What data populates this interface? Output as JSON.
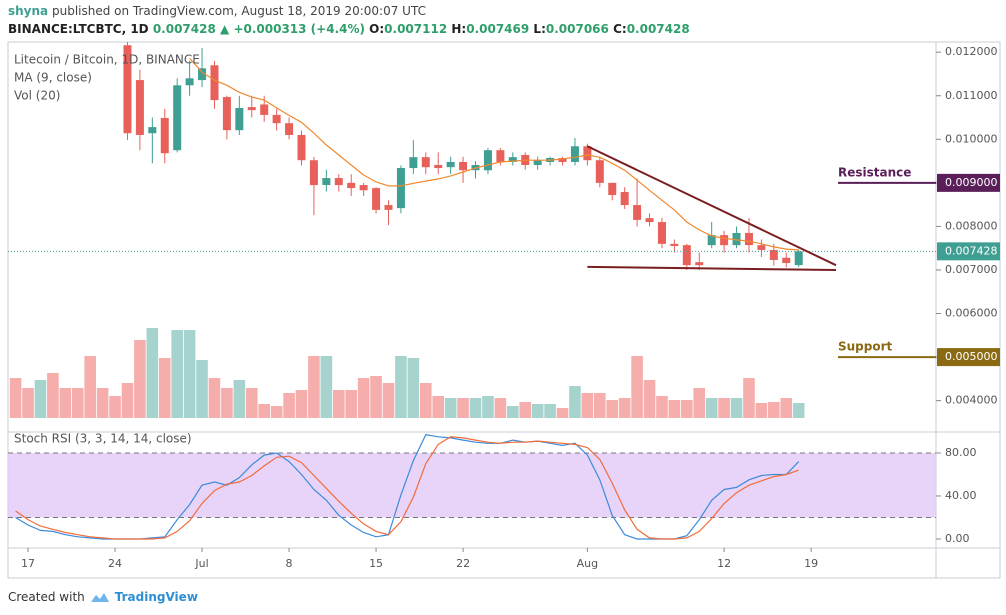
{
  "header": {
    "author": "shyna",
    "published": "published on TradingView.com, August 18, 2019 20:00:07 UTC",
    "symbol": "BINANCE:LTCBTC, 1D",
    "last": "0.007428",
    "arrow": "▲",
    "change": "+0.000313 (+4.4%)",
    "ohlc": [
      {
        "key": "O:",
        "value": "0.007112"
      },
      {
        "key": "H:",
        "value": "0.007469"
      },
      {
        "key": "L:",
        "value": "0.007066"
      },
      {
        "key": "C:",
        "value": "0.007428"
      }
    ]
  },
  "footer": {
    "text": "Created with",
    "brand": "TradingView"
  },
  "chart_data": [
    {
      "type": "candlestick",
      "title": "Litecoin / Bitcoin, 1D, BINANCE",
      "x": [
        "Jun 16",
        "Jun 17",
        "Jun 18",
        "Jun 19",
        "Jun 20",
        "Jun 21",
        "Jun 22",
        "Jun 23",
        "Jun 24",
        "Jun 25",
        "Jun 26",
        "Jun 27",
        "Jun 28",
        "Jun 29",
        "Jun 30",
        "Jul 1",
        "Jul 2",
        "Jul 3",
        "Jul 4",
        "Jul 5",
        "Jul 6",
        "Jul 7",
        "Jul 8",
        "Jul 9",
        "Jul 10",
        "Jul 11",
        "Jul 12",
        "Jul 13",
        "Jul 14",
        "Jul 15",
        "Jul 16",
        "Jul 17",
        "Jul 18",
        "Jul 19",
        "Jul 20",
        "Jul 21",
        "Jul 22",
        "Jul 23",
        "Jul 24",
        "Jul 25",
        "Jul 26",
        "Jul 27",
        "Jul 28",
        "Jul 29",
        "Jul 30",
        "Jul 31",
        "Aug 1",
        "Aug 2",
        "Aug 3",
        "Aug 4",
        "Aug 5",
        "Aug 6",
        "Aug 7",
        "Aug 8",
        "Aug 9",
        "Aug 10",
        "Aug 11",
        "Aug 12",
        "Aug 13",
        "Aug 14",
        "Aug 15",
        "Aug 16",
        "Aug 17",
        "Aug 18"
      ],
      "open": [
        null,
        null,
        null,
        null,
        null,
        null,
        null,
        null,
        null,
        0.01216,
        0.01136,
        0.01014,
        0.01049,
        0.00975,
        0.01124,
        0.01136,
        0.0117,
        0.01097,
        0.01021,
        0.01074,
        0.0108,
        0.01056,
        0.01037,
        0.0101,
        0.00952,
        0.00895,
        0.00911,
        0.009,
        0.00895,
        0.00888,
        0.00849,
        0.00842,
        0.00934,
        0.00959,
        0.00941,
        0.00936,
        0.00948,
        0.00929,
        0.00929,
        0.00975,
        0.00948,
        0.00964,
        0.00941,
        0.00948,
        0.00957,
        0.00948,
        0.00984,
        0.00952,
        0.009,
        0.00879,
        0.00849,
        0.00819,
        0.0081,
        0.0076,
        0.00757,
        0.00718,
        0.00757,
        0.0078,
        0.00757,
        0.00785,
        0.00757,
        0.00746,
        0.00728,
        0.007112
      ],
      "high": [
        null,
        null,
        null,
        null,
        null,
        null,
        null,
        null,
        null,
        0.01228,
        0.0116,
        0.0105,
        0.0107,
        0.0114,
        0.0118,
        0.0121,
        0.0118,
        0.011,
        0.011,
        0.011,
        0.011,
        0.0107,
        0.0105,
        0.0102,
        0.0096,
        0.0093,
        0.0092,
        0.0092,
        0.009,
        0.0089,
        0.0086,
        0.0094,
        0.00998,
        0.0097,
        0.0097,
        0.0096,
        0.0096,
        0.0095,
        0.0098,
        0.0098,
        0.0097,
        0.0097,
        0.0096,
        0.0096,
        0.0096,
        0.01003,
        0.0099,
        0.0096,
        0.009,
        0.0089,
        0.0091,
        0.0083,
        0.0082,
        0.0077,
        0.0076,
        0.0074,
        0.0081,
        0.0079,
        0.008,
        0.00819,
        0.0077,
        0.0076,
        0.0074,
        0.007469
      ],
      "low": [
        null,
        null,
        null,
        null,
        null,
        null,
        null,
        null,
        null,
        0.00998,
        0.00975,
        0.00945,
        0.00945,
        0.0097,
        0.011,
        0.0112,
        0.0107,
        0.01,
        0.0101,
        0.0105,
        0.0104,
        0.0102,
        0.01,
        0.0094,
        0.00826,
        0.0088,
        0.0088,
        0.0087,
        0.0087,
        0.0083,
        0.00803,
        0.0083,
        0.0092,
        0.0092,
        0.0092,
        0.0092,
        0.009,
        0.0091,
        0.0092,
        0.0094,
        0.0094,
        0.0093,
        0.0093,
        0.0094,
        0.0094,
        0.0094,
        0.0094,
        0.0089,
        0.0086,
        0.0084,
        0.008,
        0.008,
        0.0075,
        0.0074,
        0.007,
        0.007,
        0.0075,
        0.0074,
        0.0075,
        0.0074,
        0.0073,
        0.0071,
        0.00706,
        0.007066
      ],
      "close": [
        null,
        null,
        null,
        null,
        null,
        null,
        null,
        null,
        null,
        0.01014,
        0.0101,
        0.01028,
        0.00968,
        0.01124,
        0.0114,
        0.01163,
        0.0109,
        0.01021,
        0.01072,
        0.01067,
        0.01056,
        0.01037,
        0.0101,
        0.00952,
        0.00895,
        0.00911,
        0.00895,
        0.00888,
        0.00883,
        0.00838,
        0.00838,
        0.00934,
        0.00959,
        0.00936,
        0.00934,
        0.00948,
        0.00929,
        0.00941,
        0.00975,
        0.00948,
        0.00959,
        0.00941,
        0.00952,
        0.00957,
        0.00948,
        0.00984,
        0.00952,
        0.009,
        0.00872,
        0.00849,
        0.00815,
        0.0081,
        0.0076,
        0.00755,
        0.00711,
        0.00711,
        0.0078,
        0.00757,
        0.00785,
        0.00757,
        0.00746,
        0.00723,
        0.00716,
        0.007428
      ],
      "up_color": "#3f9f92",
      "down_color": "#e8605a",
      "series": [
        {
          "name": "MA (9, close)",
          "color": "#f0892e",
          "values": [
            null,
            null,
            null,
            null,
            null,
            null,
            null,
            null,
            null,
            null,
            null,
            null,
            null,
            null,
            0.01186,
            0.01154,
            0.01136,
            0.01124,
            0.01108,
            0.01097,
            0.0109,
            0.01072,
            0.01055,
            0.01039,
            0.01014,
            0.00987,
            0.00964,
            0.00941,
            0.00918,
            0.00902,
            0.00893,
            0.00893,
            0.00899,
            0.00904,
            0.00909,
            0.00916,
            0.00925,
            0.00934,
            0.00941,
            0.00948,
            0.0095,
            0.00952,
            0.00952,
            0.00952,
            0.00955,
            0.00959,
            0.00964,
            0.00959,
            0.00945,
            0.00929,
            0.00906,
            0.00883,
            0.0086,
            0.00838,
            0.0081,
            0.00792,
            0.00778,
            0.00773,
            0.00769,
            0.00766,
            0.0076,
            0.00753,
            0.00748,
            0.00746
          ]
        }
      ],
      "volume": {
        "name": "Vol (20)",
        "values": [
          40,
          30,
          38,
          45,
          30,
          30,
          62,
          30,
          22,
          35,
          78,
          90,
          60,
          88,
          88,
          58,
          40,
          30,
          38,
          30,
          14,
          12,
          25,
          28,
          62,
          62,
          28,
          28,
          40,
          42,
          35,
          62,
          60,
          35,
          22,
          20,
          20,
          20,
          22,
          20,
          12,
          16,
          14,
          14,
          10,
          32,
          25,
          25,
          18,
          20,
          62,
          38,
          22,
          18,
          18,
          30,
          20,
          20,
          20,
          40,
          15,
          16,
          20,
          15
        ],
        "colors": [
          "#f5aeab",
          "#f5aeab",
          "#a6d3cd",
          "#f5aeab",
          "#f5aeab",
          "#f5aeab",
          "#f5aeab",
          "#f5aeab",
          "#f5aeab",
          "#f5aeab",
          "#f5aeab",
          "#a6d3cd",
          "#f5aeab",
          "#a6d3cd",
          "#a6d3cd",
          "#a6d3cd",
          "#f5aeab",
          "#f5aeab",
          "#a6d3cd",
          "#f5aeab",
          "#f5aeab",
          "#f5aeab",
          "#f5aeab",
          "#f5aeab",
          "#f5aeab",
          "#a6d3cd",
          "#f5aeab",
          "#f5aeab",
          "#f5aeab",
          "#f5aeab",
          "#f5aeab",
          "#a6d3cd",
          "#a6d3cd",
          "#f5aeab",
          "#f5aeab",
          "#a6d3cd",
          "#f5aeab",
          "#a6d3cd",
          "#a6d3cd",
          "#f5aeab",
          "#a6d3cd",
          "#f5aeab",
          "#a6d3cd",
          "#a6d3cd",
          "#f5aeab",
          "#a6d3cd",
          "#f5aeab",
          "#f5aeab",
          "#f5aeab",
          "#f5aeab",
          "#f5aeab",
          "#f5aeab",
          "#f5aeab",
          "#f5aeab",
          "#f5aeab",
          "#f5aeab",
          "#a6d3cd",
          "#f5aeab",
          "#a6d3cd",
          "#f5aeab",
          "#f5aeab",
          "#f5aeab",
          "#f5aeab",
          "#a6d3cd"
        ]
      },
      "ylim": [
        0.00328,
        0.01228
      ],
      "yticks": [
        {
          "value": 0.004,
          "label": "0.004000"
        },
        {
          "value": 0.005,
          "label": "0.005000"
        },
        {
          "value": 0.006,
          "label": "0.006000"
        },
        {
          "value": 0.007,
          "label": "0.007000"
        },
        {
          "value": 0.008,
          "label": "0.008000"
        },
        {
          "value": 0.009,
          "label": "0.009000"
        },
        {
          "value": 0.01,
          "label": "0.010000"
        },
        {
          "value": 0.011,
          "label": "0.011000"
        },
        {
          "value": 0.012,
          "label": "0.012000"
        }
      ],
      "xticks": [
        {
          "value": "Jun 17",
          "label": "17"
        },
        {
          "value": "Jun 24",
          "label": "24"
        },
        {
          "value": "Jul 1",
          "label": "Jul"
        },
        {
          "value": "Jul 8",
          "label": "8"
        },
        {
          "value": "Jul 15",
          "label": "15"
        },
        {
          "value": "Jul 22",
          "label": "22"
        },
        {
          "value": "Aug 1",
          "label": "Aug"
        },
        {
          "value": "Aug 12",
          "label": "12"
        },
        {
          "value": "Aug 19",
          "label": "19"
        }
      ],
      "grid": false,
      "last_price": {
        "value": 0.007428,
        "label": "0.007428",
        "color": "#3f9f92"
      },
      "levels": [
        {
          "name": "Resistance",
          "value": 0.009,
          "label": "0.009000",
          "color": "#5a1f58"
        },
        {
          "name": "Support",
          "value": 0.005,
          "label": "0.005000",
          "color": "#8a6a12"
        }
      ],
      "trendlines": [
        {
          "x": [
            "Aug 1",
            "Aug 21"
          ],
          "y": [
            0.00984,
            0.00711
          ],
          "color": "#7a1e22"
        },
        {
          "x": [
            "Aug 1",
            "Aug 21"
          ],
          "y": [
            0.00707,
            0.007
          ],
          "color": "#7a1e22"
        }
      ]
    },
    {
      "type": "line",
      "title": "Stoch RSI (3, 3, 14, 14, close)",
      "series": [
        {
          "color": "#3d8bd9",
          "values": [
            20,
            13,
            8,
            7,
            4,
            2,
            1,
            0,
            0,
            0,
            0,
            1,
            2,
            18,
            32,
            50,
            53,
            50,
            57,
            69,
            78,
            80,
            72,
            60,
            46,
            36,
            22,
            13,
            6,
            2,
            4,
            41,
            73,
            97,
            95,
            94,
            92,
            90,
            89,
            89,
            92,
            90,
            91,
            89,
            87,
            89,
            78,
            55,
            22,
            4,
            0,
            0,
            0,
            0,
            3,
            18,
            36,
            46,
            48,
            55,
            59,
            60,
            60,
            72
          ]
        },
        {
          "color": "#f26c3a",
          "values": [
            26,
            18,
            12,
            9,
            6,
            4,
            2,
            1,
            0,
            0,
            0,
            0,
            1,
            7,
            17,
            33,
            45,
            51,
            53,
            59,
            68,
            76,
            77,
            71,
            59,
            47,
            35,
            24,
            14,
            7,
            4,
            16,
            39,
            70,
            88,
            95,
            94,
            92,
            90,
            89,
            90,
            90,
            91,
            90,
            89,
            88,
            85,
            74,
            52,
            27,
            9,
            1,
            0,
            0,
            1,
            7,
            19,
            33,
            43,
            50,
            54,
            58,
            60,
            64
          ]
        }
      ],
      "ylim": [
        -8.4,
        99.5
      ],
      "yticks": [
        {
          "value": 0,
          "label": "0.00"
        },
        {
          "value": 40,
          "label": "40.00"
        },
        {
          "value": 80,
          "label": "80.00"
        }
      ],
      "bands": [
        20,
        80
      ],
      "band_color": "#e4cdf8"
    }
  ]
}
